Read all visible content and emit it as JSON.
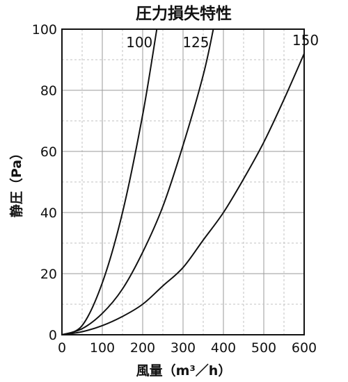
{
  "chart_data": {
    "type": "line",
    "title": "圧力損失特性",
    "xlabel": "風量（m³／h）",
    "ylabel": "静圧（Pa）",
    "xlim": [
      0,
      600
    ],
    "ylim": [
      0,
      100
    ],
    "xticks": [
      0,
      100,
      200,
      300,
      400,
      500,
      600
    ],
    "yticks": [
      0,
      20,
      40,
      60,
      80,
      100
    ],
    "x_minor_step": 50,
    "y_minor_step": 10,
    "grid": true,
    "series": [
      {
        "name": "100",
        "points": [
          [
            0,
            0
          ],
          [
            50,
            3
          ],
          [
            100,
            17
          ],
          [
            150,
            40
          ],
          [
            200,
            72
          ],
          [
            235,
            100
          ]
        ]
      },
      {
        "name": "125",
        "points": [
          [
            0,
            0
          ],
          [
            50,
            2
          ],
          [
            100,
            7
          ],
          [
            150,
            15
          ],
          [
            200,
            27
          ],
          [
            250,
            42
          ],
          [
            300,
            62
          ],
          [
            350,
            85
          ],
          [
            375,
            100
          ]
        ]
      },
      {
        "name": "150",
        "points": [
          [
            0,
            0
          ],
          [
            50,
            1
          ],
          [
            100,
            3
          ],
          [
            150,
            6
          ],
          [
            200,
            10
          ],
          [
            250,
            16
          ],
          [
            300,
            22
          ],
          [
            350,
            31
          ],
          [
            400,
            40
          ],
          [
            450,
            51
          ],
          [
            500,
            63
          ],
          [
            550,
            77
          ],
          [
            600,
            92
          ]
        ]
      }
    ]
  }
}
